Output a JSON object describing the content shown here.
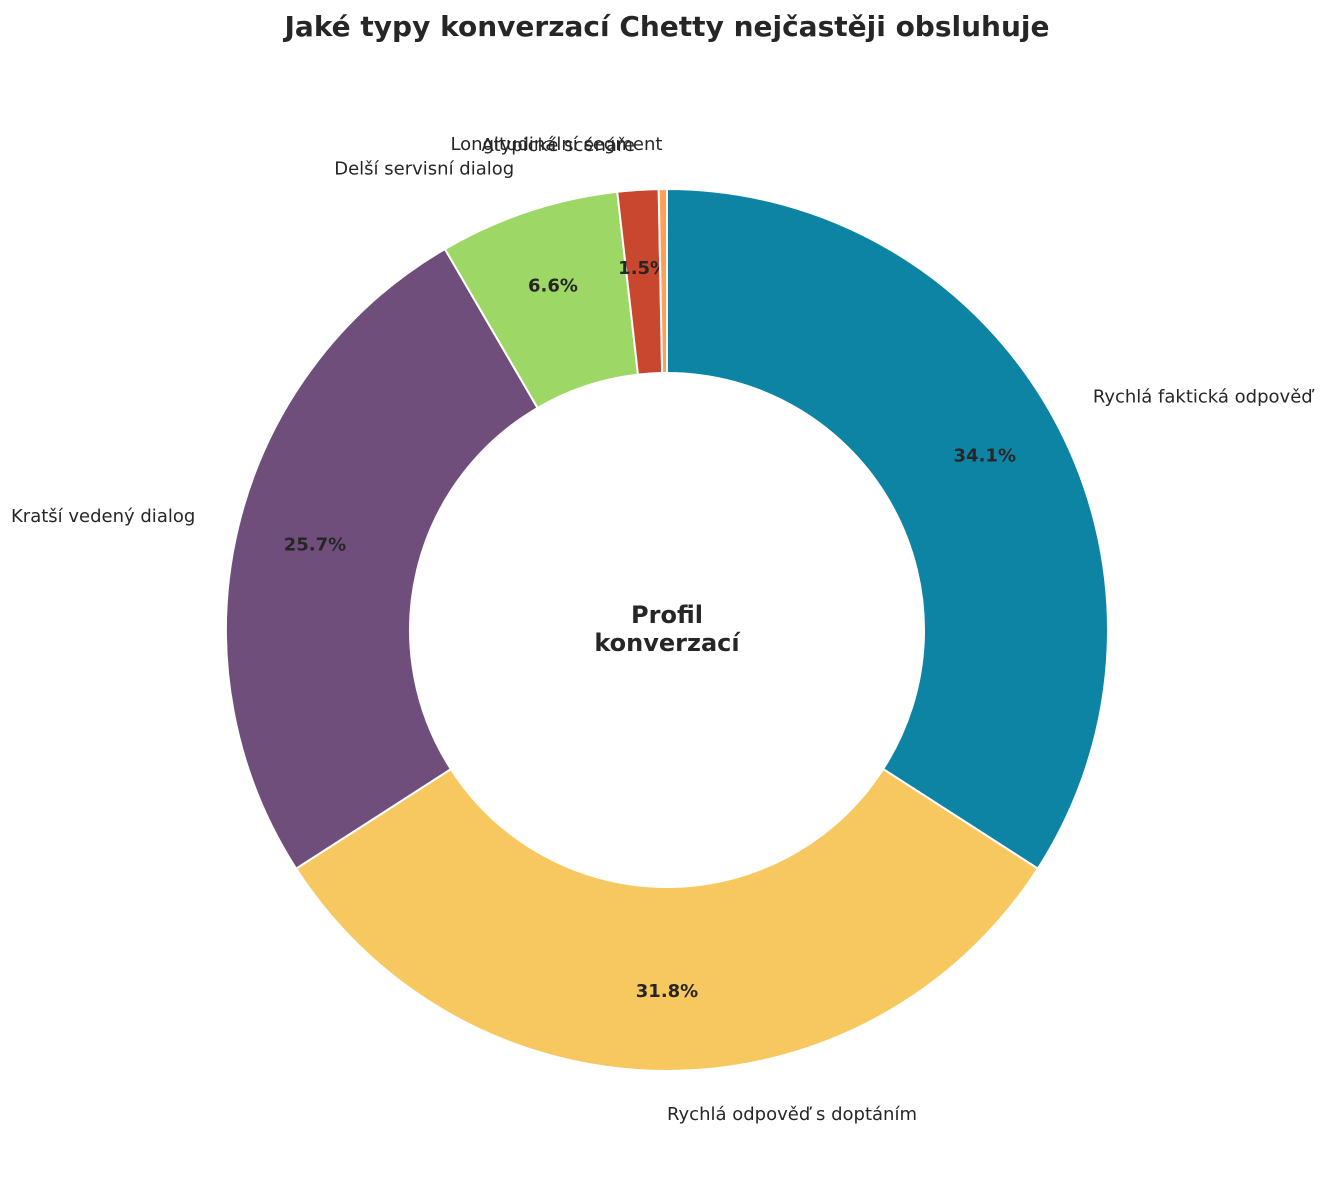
{
  "chart_data": {
    "type": "donut",
    "title": "Jaké typy konverzací Chetty nejčastěji obsluhuje",
    "center_label": [
      "Profil",
      "konverzací"
    ],
    "categories": [
      "Rychlá faktická odpověď",
      "Rychlá odpověď s doptáním",
      "Kratší vedený dialog",
      "Delší servisní dialog",
      "Atypické scénáře",
      "Longitudinální segment"
    ],
    "values": [
      34.1,
      31.8,
      25.7,
      6.6,
      1.5,
      0.3
    ],
    "value_labels": [
      "34.1%",
      "31.8%",
      "25.7%",
      "6.6%",
      "1.5%",
      null
    ],
    "colors": [
      "#0e84a5",
      "#f6c85f",
      "#6f4e7c",
      "#9dd866",
      "#ca472f",
      "#ffa056"
    ]
  }
}
